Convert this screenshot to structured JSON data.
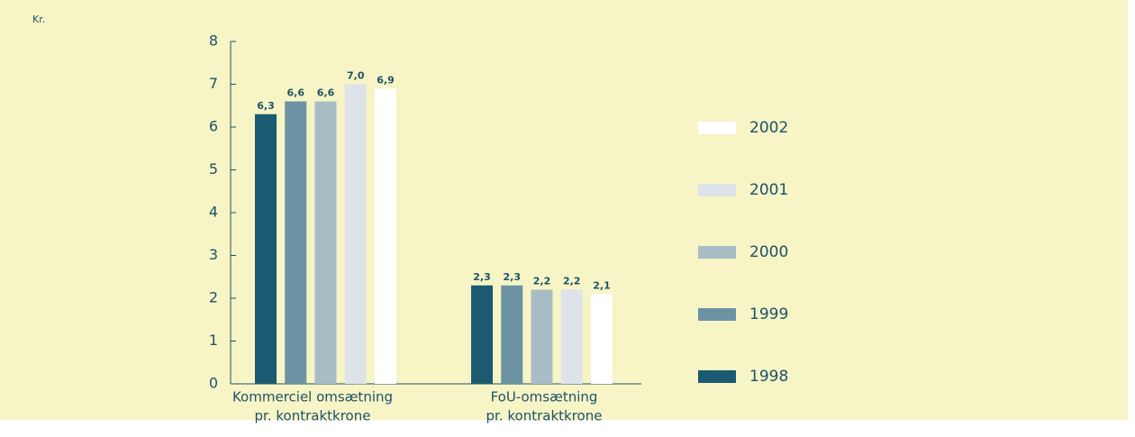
{
  "chart_data": {
    "type": "bar",
    "y_label": "Kr.",
    "categories": [
      [
        "Kommerciel omsætning",
        "pr. kontraktkrone"
      ],
      [
        "FoU-omsætning",
        "pr. kontraktkrone"
      ]
    ],
    "series": [
      {
        "name": "1998",
        "color": "#1b5a70",
        "values": [
          6.3,
          2.3
        ],
        "value_labels": [
          "6,3",
          "2,3"
        ]
      },
      {
        "name": "1999",
        "color": "#6b93a3",
        "values": [
          6.6,
          2.3
        ],
        "value_labels": [
          "6,6",
          "2,3"
        ]
      },
      {
        "name": "2000",
        "color": "#a8bcc6",
        "values": [
          6.6,
          2.2
        ],
        "value_labels": [
          "6,6",
          "2,2"
        ]
      },
      {
        "name": "2001",
        "color": "#dde3e8",
        "values": [
          7.0,
          2.2
        ],
        "value_labels": [
          "7,0",
          "2,2"
        ]
      },
      {
        "name": "2002",
        "color": "#ffffff",
        "values": [
          6.9,
          2.1
        ],
        "value_labels": [
          "6,9",
          "2,1"
        ]
      }
    ],
    "ylim": [
      0,
      8
    ],
    "yticks": [
      0,
      1,
      2,
      3,
      4,
      5,
      6,
      7,
      8
    ],
    "legend": "right"
  }
}
